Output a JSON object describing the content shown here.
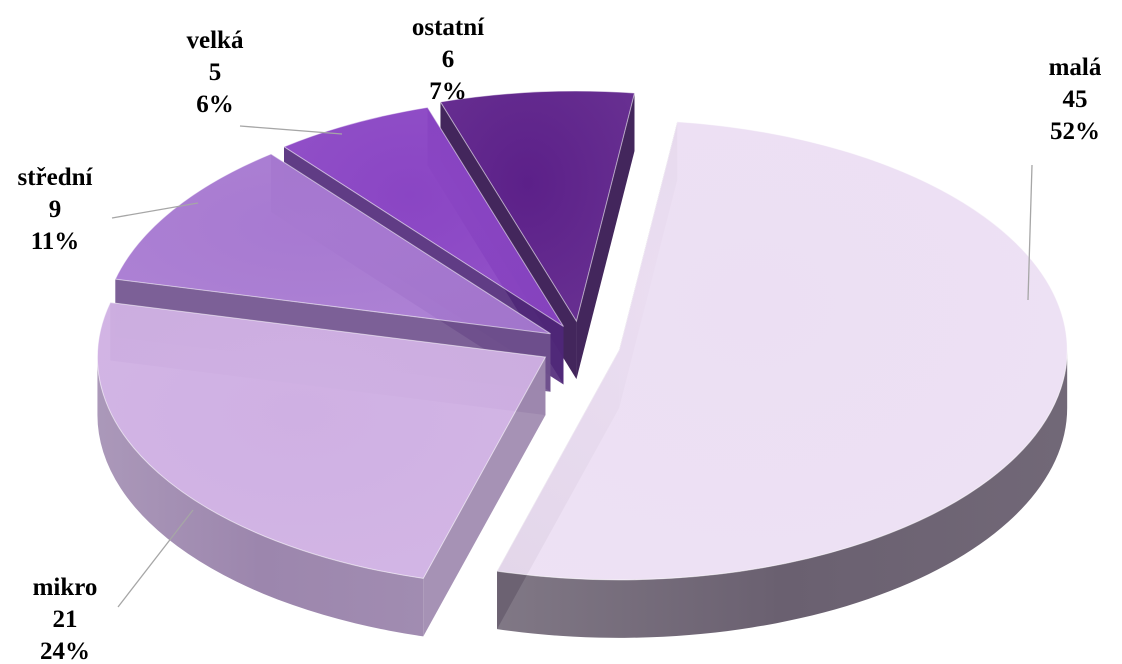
{
  "chart_data": {
    "type": "pie",
    "title": "",
    "style": "3d-exploded",
    "legend": "none",
    "slices": [
      {
        "label": "malá",
        "value": 45,
        "percent": "52%",
        "color": "#ecdff3",
        "side_color": "#6a6070"
      },
      {
        "label": "mikro",
        "value": 21,
        "percent": "24%",
        "color": "#cfb0e3",
        "side_color": "#9c86ad"
      },
      {
        "label": "střední",
        "value": 9,
        "percent": "11%",
        "color": "#a779d1",
        "side_color": "#6e4f8c"
      },
      {
        "label": "velká",
        "value": 5,
        "percent": "6%",
        "color": "#8a45c4",
        "side_color": "#4f2778"
      },
      {
        "label": "ostatní",
        "value": 6,
        "percent": "7%",
        "color": "#5c2089",
        "side_color": "#2f0e4a"
      }
    ]
  }
}
